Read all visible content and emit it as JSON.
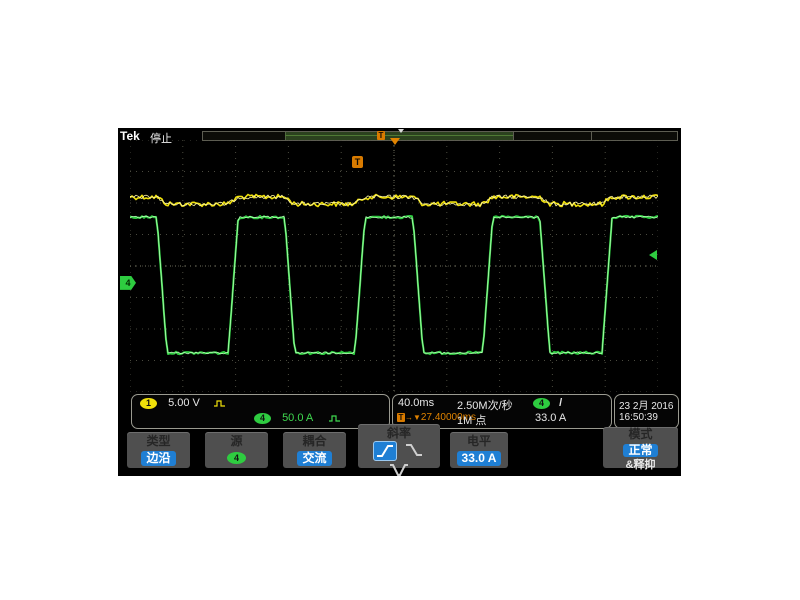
{
  "header": {
    "logo": "Tek",
    "acq_status": "停止",
    "acqbar_trigger_glyph": "T"
  },
  "markers": {
    "expansion_t_glyph": "T",
    "ch4_ground_badge": "4"
  },
  "status": {
    "ch1": {
      "badge": "1",
      "scale": "5.00 V"
    },
    "ch4": {
      "badge": "4",
      "scale": "50.0 A"
    },
    "horizontal": {
      "timebase": "40.0ms",
      "sample_rate": "2.50M次/秒",
      "record_length": "1M 点",
      "delay_prefix": "→▼",
      "delay": "27.40000ms"
    },
    "trigger": {
      "source_badge": "4",
      "slope_glyph": "/",
      "level": "33.0 A"
    },
    "datetime": {
      "date": "23 2月 2016",
      "time": "16:50:39"
    }
  },
  "menu": [
    {
      "label": "类型",
      "value": "边沿"
    },
    {
      "label": "源",
      "badge": "4"
    },
    {
      "label": "耦合",
      "value": "交流"
    },
    {
      "label": "斜率"
    },
    {
      "label": "电平",
      "value": "33.0 A"
    },
    {
      "label": "模式",
      "value": "正常",
      "value2": "&释抑"
    }
  ],
  "chart_data": {
    "type": "line",
    "title": "Oscilloscope display: CH1 and CH4 square waves (acquisition stopped)",
    "x_axis": {
      "ms_per_div": 40,
      "divisions": 10,
      "range_ms": [
        0,
        400
      ],
      "grid": "dotted"
    },
    "y_axis": {
      "divisions": 8
    },
    "trigger": {
      "source": "CH4",
      "level_A": 33.0,
      "slope": "rising",
      "delay_readout_ms": 27.4,
      "coupling": "AC (交流)",
      "mode": "normal + holdoff (正常&释抑)"
    },
    "acquisition": {
      "sample_rate": "2.50 MS/s",
      "record_length": "1M points",
      "state": "stopped"
    },
    "series": [
      {
        "name": "CH1",
        "scale": "5.00 V/div",
        "color": "#f0e10a",
        "glow": "#fff7a0",
        "description": "noisy low-amplitude square wave near top of screen, in phase with CH4",
        "high_frac": 0.226,
        "low_frac": 0.254,
        "noise_frac": 0.01,
        "stroke": 1.6
      },
      {
        "name": "CH4",
        "scale": "50.0 A/div",
        "color": "#2ecc40",
        "glow": "#b5ffb5",
        "description": "large square wave, approx +105 A high / -110 A low, period ~97 ms, duty ~44% high",
        "high_frac": 0.306,
        "low_frac": 0.845,
        "noise_frac": 0.005,
        "stroke": 2,
        "ground_frac": 0.567,
        "trigger_level_frac": 0.456,
        "period_ms": 97,
        "duty_high": 0.44,
        "high_A": 105,
        "low_A": -110
      }
    ],
    "edges": {
      "start_high": true,
      "fall_fracs": [
        0.051,
        0.293,
        0.536,
        0.776
      ],
      "rise_fracs": [
        0.186,
        0.426,
        0.668,
        0.894
      ],
      "edge_width_frac": 0.019
    }
  }
}
